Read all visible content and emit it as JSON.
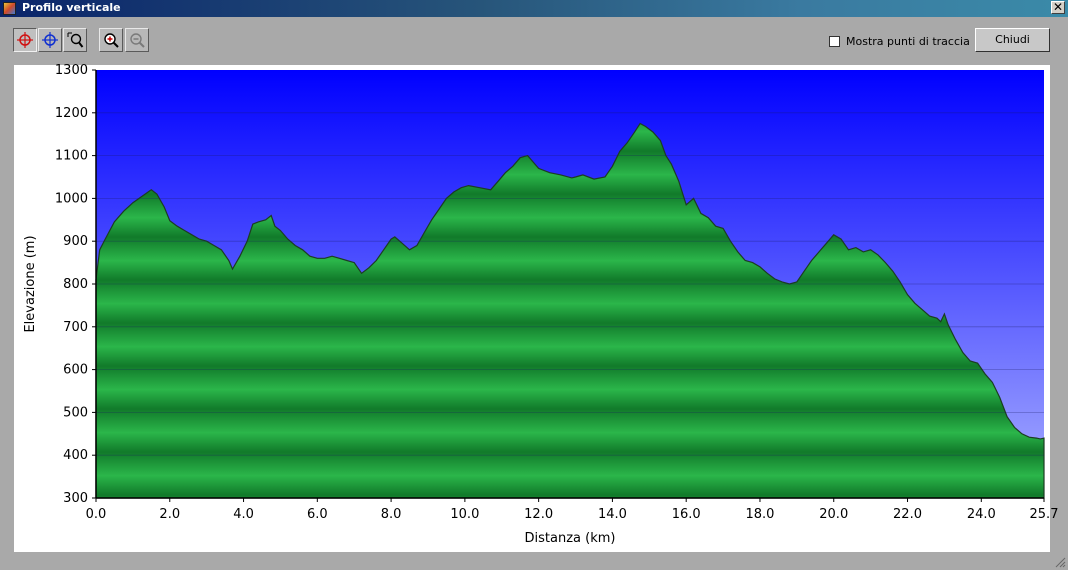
{
  "window": {
    "title": "Profilo verticale",
    "close_glyph": "✕"
  },
  "toolbar": {
    "buttons": [
      {
        "name": "crosshair-red-icon",
        "pressed": true
      },
      {
        "name": "crosshair-blue-icon",
        "pressed": false
      },
      {
        "name": "zoom-area-icon",
        "pressed": false
      },
      {
        "name": "zoom-in-icon",
        "pressed": false
      },
      {
        "name": "zoom-out-icon",
        "pressed": false,
        "disabled": true
      }
    ],
    "show_track_points_label": "Mostra punti di traccia",
    "show_track_points_checked": false,
    "close_label": "Chiudi"
  },
  "colors": {
    "sky_top": "#0000ff",
    "sky_bottom": "#aab0ff",
    "terrain_light": "#2bb64a",
    "terrain_dark": "#117a2a",
    "outline": "#1c3d22",
    "gridline": "#1a1a60"
  },
  "chart_data": {
    "type": "area",
    "title": "",
    "xlabel": "Distanza    (km)",
    "ylabel": "Elevazione  (m)",
    "xlim": [
      0,
      25.7
    ],
    "ylim": [
      300,
      1300
    ],
    "xticks": [
      "0.0",
      "2.0",
      "4.0",
      "6.0",
      "8.0",
      "10.0",
      "12.0",
      "14.0",
      "16.0",
      "18.0",
      "20.0",
      "22.0",
      "24.0",
      "25.7"
    ],
    "yticks": [
      "300",
      "400",
      "500",
      "600",
      "700",
      "800",
      "900",
      "1000",
      "1100",
      "1200",
      "1300"
    ],
    "grid": true,
    "series": [
      {
        "x": [
          0.0,
          0.1,
          0.25,
          0.5,
          0.75,
          1.0,
          1.25,
          1.5,
          1.65,
          1.85,
          2.0,
          2.2,
          2.4,
          2.6,
          2.8,
          3.0,
          3.2,
          3.4,
          3.6,
          3.7,
          3.9,
          4.1,
          4.25,
          4.4,
          4.6,
          4.75,
          4.85,
          5.0,
          5.2,
          5.4,
          5.6,
          5.8,
          6.0,
          6.2,
          6.4,
          6.6,
          6.8,
          7.0,
          7.2,
          7.4,
          7.6,
          7.8,
          8.0,
          8.1,
          8.3,
          8.5,
          8.7,
          8.9,
          9.1,
          9.3,
          9.5,
          9.7,
          9.9,
          10.1,
          10.4,
          10.7,
          10.9,
          11.1,
          11.3,
          11.5,
          11.7,
          12.0,
          12.3,
          12.6,
          12.9,
          13.0,
          13.2,
          13.5,
          13.8,
          14.0,
          14.2,
          14.4,
          14.6,
          14.75,
          14.9,
          15.1,
          15.3,
          15.45,
          15.6,
          15.8,
          16.0,
          16.2,
          16.4,
          16.6,
          16.8,
          17.0,
          17.2,
          17.4,
          17.6,
          17.8,
          18.0,
          18.2,
          18.4,
          18.6,
          18.8,
          19.0,
          19.2,
          19.4,
          19.6,
          19.8,
          20.0,
          20.2,
          20.4,
          20.6,
          20.8,
          21.0,
          21.2,
          21.4,
          21.6,
          21.8,
          22.0,
          22.2,
          22.4,
          22.6,
          22.8,
          22.9,
          23.0,
          23.1,
          23.3,
          23.5,
          23.7,
          23.9,
          24.1,
          24.3,
          24.5,
          24.7,
          24.9,
          25.1,
          25.3,
          25.5,
          25.6,
          25.7
        ],
        "y": [
          810,
          880,
          905,
          945,
          970,
          990,
          1005,
          1020,
          1010,
          980,
          948,
          935,
          925,
          915,
          905,
          900,
          890,
          880,
          855,
          835,
          865,
          900,
          940,
          945,
          950,
          960,
          935,
          925,
          905,
          890,
          880,
          865,
          860,
          860,
          865,
          860,
          855,
          850,
          825,
          838,
          855,
          880,
          905,
          910,
          895,
          880,
          890,
          920,
          950,
          975,
          1000,
          1015,
          1025,
          1030,
          1025,
          1020,
          1040,
          1060,
          1075,
          1095,
          1100,
          1070,
          1060,
          1055,
          1048,
          1050,
          1055,
          1045,
          1050,
          1075,
          1110,
          1130,
          1155,
          1175,
          1168,
          1155,
          1135,
          1100,
          1080,
          1040,
          985,
          1000,
          965,
          955,
          935,
          930,
          900,
          875,
          855,
          850,
          840,
          825,
          812,
          805,
          800,
          805,
          830,
          855,
          875,
          895,
          915,
          905,
          880,
          885,
          875,
          880,
          868,
          850,
          830,
          805,
          775,
          755,
          740,
          725,
          720,
          712,
          730,
          705,
          670,
          640,
          620,
          615,
          590,
          570,
          535,
          490,
          465,
          450,
          442,
          440,
          438,
          440
        ]
      }
    ]
  }
}
